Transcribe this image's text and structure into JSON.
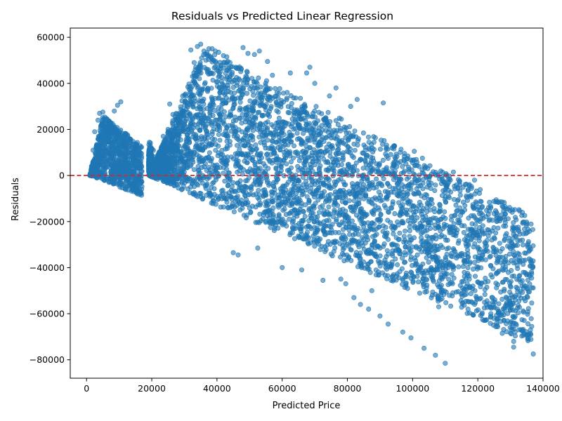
{
  "chart_data": {
    "type": "scatter",
    "title": "Residuals vs Predicted Linear Regression",
    "xlabel": "Predicted Price",
    "ylabel": "Residuals",
    "xlim": [
      -5000,
      140000
    ],
    "ylim": [
      -88000,
      64000
    ],
    "xticks": [
      0,
      20000,
      40000,
      60000,
      80000,
      100000,
      120000,
      140000
    ],
    "yticks": [
      -80000,
      -60000,
      -40000,
      -20000,
      0,
      20000,
      40000,
      60000
    ],
    "reference_line": {
      "y": 0,
      "color": "#d62728",
      "style": "dashed"
    },
    "point_color": "#1f77b4",
    "point_opacity": 0.6,
    "grid": false,
    "legend": "none",
    "highlight_points": [
      [
        137000,
        -77500
      ],
      [
        135500,
        -50500
      ],
      [
        131000,
        -72000
      ],
      [
        131000,
        -74500
      ],
      [
        130500,
        -66000
      ],
      [
        129000,
        -56500
      ],
      [
        128500,
        -14500
      ],
      [
        128000,
        -63000
      ],
      [
        127500,
        -68500
      ],
      [
        127500,
        -11500
      ],
      [
        126000,
        -58000
      ],
      [
        125000,
        -27000
      ],
      [
        124500,
        -53000
      ],
      [
        124000,
        -60000
      ],
      [
        124000,
        -14000
      ],
      [
        122000,
        -57500
      ],
      [
        121000,
        -47000
      ],
      [
        120000,
        -26000
      ],
      [
        119000,
        -2000
      ],
      [
        118500,
        -48000
      ],
      [
        117000,
        -58000
      ],
      [
        116000,
        -15000
      ],
      [
        115500,
        -46000
      ],
      [
        114000,
        -10500
      ],
      [
        113000,
        -33000
      ],
      [
        112500,
        1500
      ],
      [
        111500,
        -38000
      ],
      [
        111000,
        -9000
      ],
      [
        110000,
        -81500
      ],
      [
        109000,
        -45000
      ],
      [
        108000,
        -57000
      ],
      [
        107000,
        -78000
      ],
      [
        106000,
        -52000
      ],
      [
        105000,
        -27000
      ],
      [
        104500,
        -12000
      ],
      [
        103500,
        -75000
      ],
      [
        103000,
        7500
      ],
      [
        102000,
        -40000
      ],
      [
        100500,
        10500
      ],
      [
        99500,
        -70500
      ],
      [
        97000,
        -68000
      ],
      [
        96000,
        -17000
      ],
      [
        95000,
        -27000
      ],
      [
        92500,
        -64500
      ],
      [
        91000,
        31500
      ],
      [
        90000,
        -61000
      ],
      [
        89500,
        -14000
      ],
      [
        87500,
        -50000
      ],
      [
        86500,
        -58000
      ],
      [
        85000,
        -4000
      ],
      [
        84000,
        -56000
      ],
      [
        83000,
        33000
      ],
      [
        82000,
        -53000
      ],
      [
        81000,
        30000
      ],
      [
        79500,
        -47000
      ],
      [
        78000,
        -45000
      ],
      [
        76500,
        38000
      ],
      [
        74500,
        34500
      ],
      [
        72500,
        -45500
      ],
      [
        70000,
        40000
      ],
      [
        68500,
        47000
      ],
      [
        67500,
        44500
      ],
      [
        66000,
        -41000
      ],
      [
        62500,
        44500
      ],
      [
        60000,
        -40000
      ],
      [
        57000,
        43500
      ],
      [
        55500,
        49500
      ],
      [
        53000,
        54000
      ],
      [
        52500,
        -31500
      ],
      [
        51500,
        52500
      ],
      [
        49500,
        53000
      ],
      [
        48000,
        55500
      ],
      [
        46500,
        -34500
      ],
      [
        45000,
        -33500
      ],
      [
        44000,
        49000
      ],
      [
        43000,
        51500
      ],
      [
        42000,
        52000
      ],
      [
        41000,
        45000
      ],
      [
        40500,
        53500
      ],
      [
        39500,
        54000
      ],
      [
        38500,
        55000
      ],
      [
        38000,
        51500
      ],
      [
        37500,
        55000
      ],
      [
        37000,
        52500
      ],
      [
        36000,
        54000
      ],
      [
        35000,
        57000
      ],
      [
        34000,
        56000
      ],
      [
        33500,
        47000
      ],
      [
        33000,
        49000
      ],
      [
        32000,
        54500
      ],
      [
        30500,
        28500
      ],
      [
        29500,
        34500
      ],
      [
        28000,
        23000
      ],
      [
        26500,
        26500
      ],
      [
        25500,
        31000
      ],
      [
        25000,
        20000
      ],
      [
        23500,
        17000
      ],
      [
        22500,
        10000
      ],
      [
        21500,
        6000
      ],
      [
        20000,
        3000
      ],
      [
        10500,
        32000
      ],
      [
        9500,
        30500
      ],
      [
        8500,
        28000
      ],
      [
        5000,
        27500
      ],
      [
        4000,
        27000
      ],
      [
        3500,
        24000
      ],
      [
        2500,
        19000
      ],
      [
        2000,
        11000
      ],
      [
        1500,
        4000
      ],
      [
        1200,
        500
      ]
    ]
  }
}
